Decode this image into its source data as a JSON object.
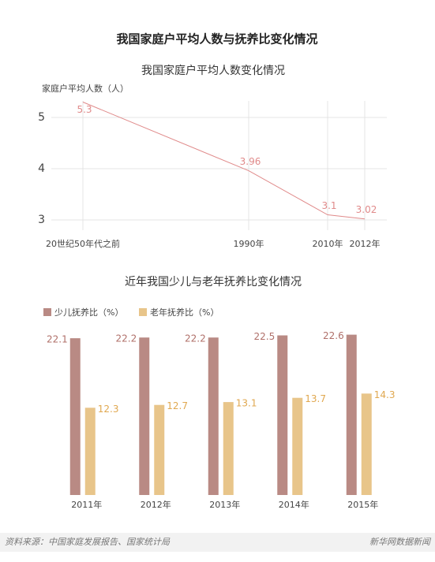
{
  "title": "我国家庭户平均人数与抚养比变化情况",
  "chart_data": [
    {
      "type": "line",
      "title": "我国家庭户平均人数变化情况",
      "y_label": "家庭户平均人数（人）",
      "categories": [
        "20世纪50年代之前",
        "1990年",
        "2010年",
        "2012年"
      ],
      "values": [
        5.3,
        3.96,
        3.1,
        3.02
      ],
      "color": "#e08a8a",
      "ylim": [
        2.9,
        5.5
      ],
      "yticks": [
        3,
        4,
        5
      ],
      "grid": true
    },
    {
      "type": "bar",
      "title": "近年我国少儿与老年抚养比变化情况",
      "categories": [
        "2011年",
        "2012年",
        "2013年",
        "2014年",
        "2015年"
      ],
      "series": [
        {
          "name": "少儿抚养比（%）",
          "color": "#b98a84",
          "values": [
            22.1,
            22.2,
            22.2,
            22.5,
            22.6
          ]
        },
        {
          "name": "老年抚养比（%）",
          "color": "#e8c58a",
          "values": [
            12.3,
            12.7,
            13.1,
            13.7,
            14.3
          ]
        }
      ],
      "ylim": [
        0,
        24
      ]
    }
  ],
  "footer": {
    "source": "资料来源：中国家庭发展报告、国家统计局",
    "credit": "新华网数据新闻"
  }
}
